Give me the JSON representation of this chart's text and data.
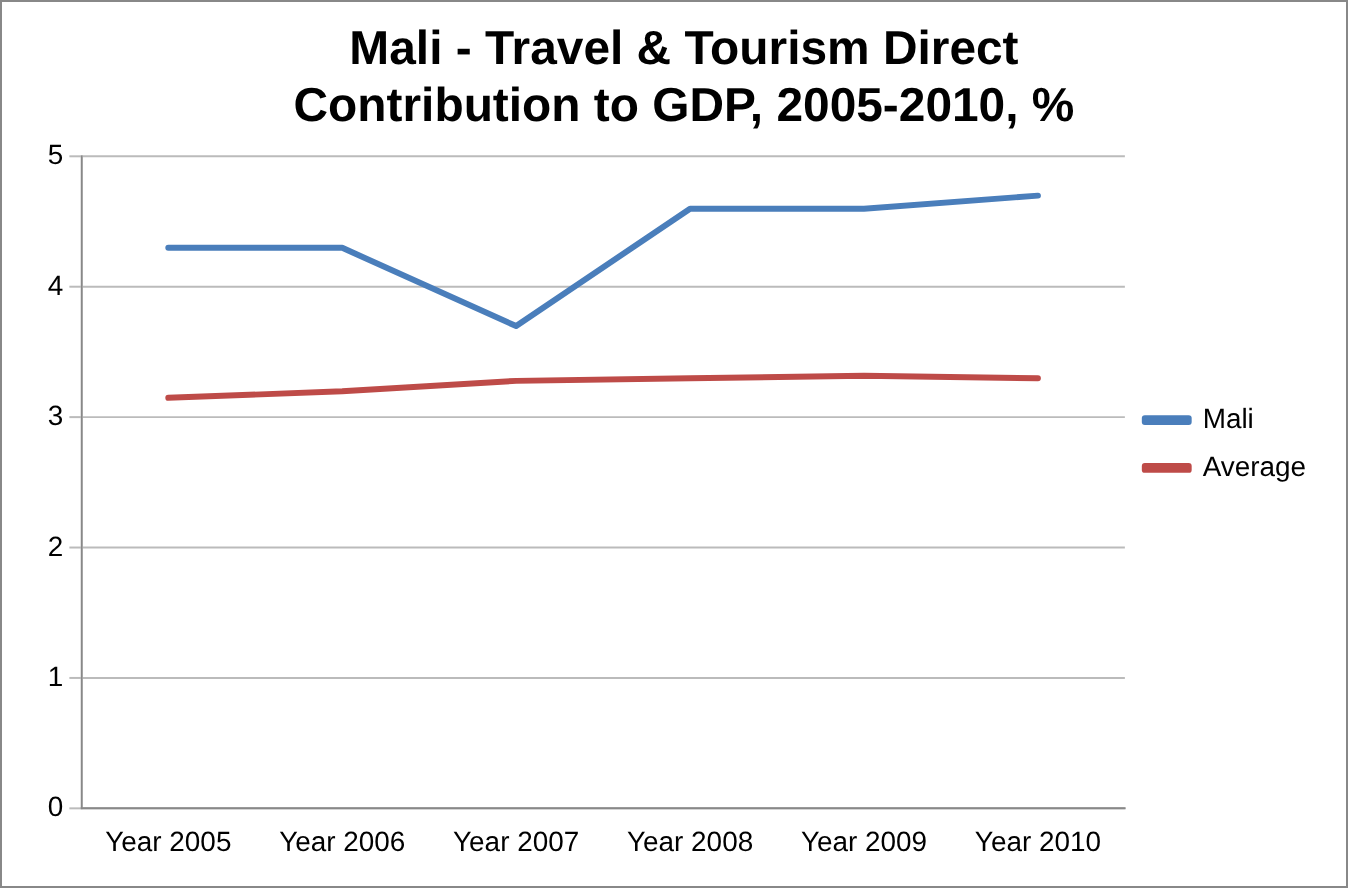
{
  "chart_data": {
    "type": "line",
    "title": "Mali - Travel & Tourism Direct\nContribution to GDP, 2005-2010, %",
    "categories": [
      "Year 2005",
      "Year 2006",
      "Year 2007",
      "Year 2008",
      "Year 2009",
      "Year 2010"
    ],
    "series": [
      {
        "name": "Mali",
        "color": "#4a7ebb",
        "values": [
          4.3,
          4.3,
          3.7,
          4.6,
          4.6,
          4.7
        ]
      },
      {
        "name": "Average",
        "color": "#be4b48",
        "values": [
          3.15,
          3.2,
          3.28,
          3.3,
          3.32,
          3.3
        ]
      }
    ],
    "ylim": [
      0,
      5
    ],
    "yticks": [
      0,
      1,
      2,
      3,
      4,
      5
    ],
    "grid": "y",
    "legend": "right",
    "marker": "none",
    "line_style": "solid"
  }
}
